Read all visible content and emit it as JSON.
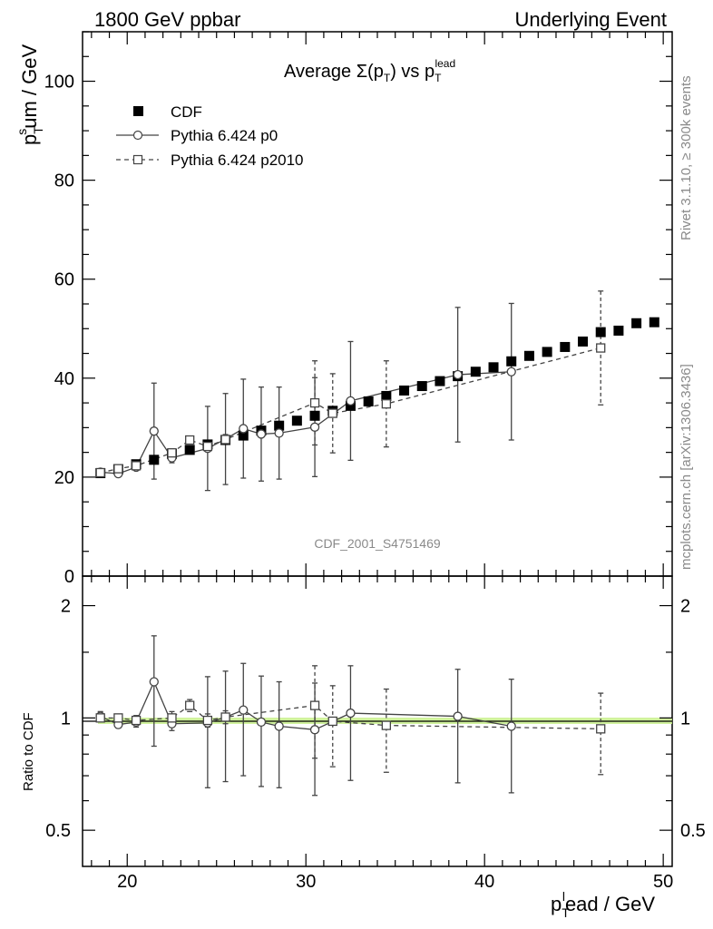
{
  "header": {
    "left": "1800 GeV ppbar",
    "right": "Underlying Event"
  },
  "side_labels": {
    "rivet": "Rivet 3.1.10, ≥ 300k events",
    "mcplots": "mcplots.cern.ch [arXiv:1306.3436]"
  },
  "watermark": "CDF_2001_S4751469",
  "chart_data": [
    {
      "type": "scatter",
      "title": "Average Σ(pT) vs pT^lead",
      "xlabel": "pT^lead / GeV",
      "ylabel": "pT^sum / GeV",
      "xlim": [
        17.5,
        50.5
      ],
      "ylim": [
        0,
        110
      ],
      "x_ticks": [
        "20",
        "30",
        "40",
        "50"
      ],
      "y_ticks": [
        "0",
        "20",
        "40",
        "60",
        "80",
        "100"
      ],
      "legend": [
        "CDF",
        "Pythia 6.424 p0",
        "Pythia 6.424 p2010"
      ],
      "series": [
        {
          "name": "CDF",
          "marker": "filled-square",
          "points": [
            [
              18.5,
              20.8
            ],
            [
              19.5,
              21.6
            ],
            [
              20.5,
              22.6
            ],
            [
              21.5,
              23.5
            ],
            [
              22.5,
              24.7
            ],
            [
              23.5,
              25.5
            ],
            [
              24.5,
              26.6
            ],
            [
              25.5,
              27.5
            ],
            [
              26.5,
              28.4
            ],
            [
              27.5,
              29.4
            ],
            [
              28.5,
              30.4
            ],
            [
              29.5,
              31.4
            ],
            [
              30.5,
              32.4
            ],
            [
              31.5,
              33.4
            ],
            [
              32.5,
              34.4
            ],
            [
              33.5,
              35.3
            ],
            [
              34.5,
              36.4
            ],
            [
              35.5,
              37.5
            ],
            [
              36.5,
              38.4
            ],
            [
              37.5,
              39.4
            ],
            [
              38.5,
              40.4
            ],
            [
              39.5,
              41.3
            ],
            [
              40.5,
              42.2
            ],
            [
              41.5,
              43.4
            ],
            [
              42.5,
              44.5
            ],
            [
              43.5,
              45.3
            ],
            [
              44.5,
              46.3
            ],
            [
              45.5,
              47.4
            ],
            [
              46.5,
              49.3
            ],
            [
              47.5,
              49.6
            ],
            [
              48.5,
              51.1
            ],
            [
              49.5,
              51.3
            ]
          ]
        },
        {
          "name": "Pythia 6.424 p0",
          "marker": "open-circle",
          "line": "solid",
          "points": [
            [
              18.5,
              21.0,
              0.4
            ],
            [
              19.5,
              20.7,
              0.5
            ],
            [
              20.5,
              22.0,
              0.6
            ],
            [
              21.5,
              29.3,
              9.7
            ],
            [
              22.5,
              23.9,
              1.0
            ],
            [
              24.5,
              25.8,
              8.5
            ],
            [
              25.5,
              27.7,
              9.2
            ],
            [
              26.5,
              29.8,
              10.0
            ],
            [
              27.5,
              28.7,
              9.5
            ],
            [
              28.5,
              28.9,
              9.3
            ],
            [
              30.5,
              30.1,
              10.0
            ],
            [
              32.5,
              35.4,
              12.0
            ],
            [
              38.5,
              40.7,
              13.6
            ],
            [
              41.5,
              41.3,
              13.8
            ]
          ]
        },
        {
          "name": "Pythia 6.424 p2010",
          "marker": "open-square",
          "line": "dashed",
          "points": [
            [
              18.5,
              20.9,
              0.5
            ],
            [
              19.5,
              21.7,
              0.5
            ],
            [
              20.5,
              22.3,
              0.6
            ],
            [
              22.5,
              24.9,
              0.8
            ],
            [
              23.5,
              27.5,
              0.8
            ],
            [
              24.5,
              26.2,
              1.0
            ],
            [
              25.5,
              27.6,
              1.0
            ],
            [
              30.5,
              35.0,
              8.5
            ],
            [
              31.5,
              32.9,
              8.0
            ],
            [
              34.5,
              34.8,
              8.7
            ],
            [
              46.5,
              46.1,
              11.5
            ]
          ]
        }
      ]
    },
    {
      "type": "scatter",
      "ylabel": "Ratio to CDF",
      "xlabel": "pT^lead / GeV",
      "y_scale": "log",
      "ylim": [
        0.4,
        2.4
      ],
      "y_ticks": [
        "0.5",
        "1",
        "2"
      ],
      "reference_band": "CDF (green band at 1)",
      "series": [
        {
          "name": "Pythia 6.424 p0",
          "marker": "open-circle",
          "line": "solid",
          "points": [
            [
              18.5,
              1.01,
              0.03
            ],
            [
              19.5,
              0.96,
              0.02
            ],
            [
              20.5,
              0.975,
              0.03
            ],
            [
              21.5,
              1.25,
              0.41
            ],
            [
              22.5,
              0.965,
              0.04
            ],
            [
              24.5,
              0.97,
              0.32
            ],
            [
              25.5,
              1.005,
              0.33
            ],
            [
              26.5,
              1.05,
              0.35
            ],
            [
              27.5,
              0.975,
              0.32
            ],
            [
              28.5,
              0.95,
              0.3
            ],
            [
              30.5,
              0.93,
              0.31
            ],
            [
              32.5,
              1.03,
              0.35
            ],
            [
              38.5,
              1.01,
              0.34
            ],
            [
              41.5,
              0.95,
              0.32
            ]
          ]
        },
        {
          "name": "Pythia 6.424 p2010",
          "marker": "open-square",
          "line": "dashed",
          "points": [
            [
              18.5,
              1.0,
              0.02
            ],
            [
              19.5,
              1.0,
              0.02
            ],
            [
              20.5,
              0.985,
              0.03
            ],
            [
              22.5,
              1.0,
              0.04
            ],
            [
              23.5,
              1.08,
              0.04
            ],
            [
              24.5,
              0.985,
              0.04
            ],
            [
              25.5,
              1.005,
              0.04
            ],
            [
              30.5,
              1.08,
              0.3
            ],
            [
              31.5,
              0.98,
              0.24
            ],
            [
              34.5,
              0.955,
              0.24
            ],
            [
              46.5,
              0.935,
              0.23
            ]
          ]
        }
      ]
    }
  ]
}
